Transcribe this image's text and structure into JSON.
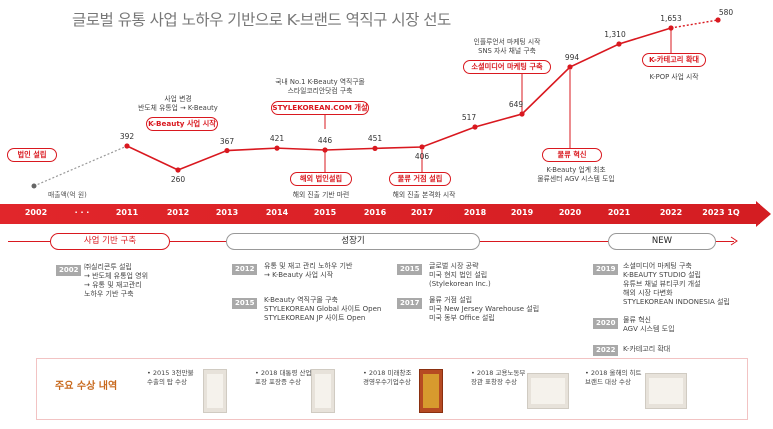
{
  "title": "글로벌 유통 사업 노하우 기반으로 K-브랜드 역직구 시장 선도",
  "sales_unit": "매출액(억 원)",
  "chart_data": {
    "type": "line",
    "unit": "억 원",
    "points": [
      {
        "year": "2011",
        "value": 392
      },
      {
        "year": "2012",
        "value": 260
      },
      {
        "year": "2013",
        "value": 367
      },
      {
        "year": "2014",
        "value": 421
      },
      {
        "year": "2015",
        "value": 446
      },
      {
        "year": "2016",
        "value": 451
      },
      {
        "year": "2017",
        "value": 406
      },
      {
        "year": "2018",
        "value": 517
      },
      {
        "year": "2019",
        "value": 649
      },
      {
        "year": "2020",
        "value": 994
      },
      {
        "year": "2021",
        "value": 1310
      },
      {
        "year": "2022",
        "value": 1653
      },
      {
        "year": "2023 1Q",
        "value": 580
      }
    ],
    "labels": [
      "392",
      "260",
      "367",
      "421",
      "446",
      "451",
      "406",
      "517",
      "649",
      "994",
      "1,310",
      "1,653",
      "580"
    ]
  },
  "events": {
    "founding": "법인 설립",
    "kbeauty_start": "K-Beauty 사업 시작",
    "kbeauty_note": "사업 변경\n반도체 유통업 → K-Beauty",
    "stylekorean_open": "STYLEKOREAN.COM 개설",
    "stylekorean_note": "국내 No.1 K-Beauty 역직구몰\n스타일코리안닷컴 구축",
    "overseas_corp": "해외 법인설립",
    "overseas_note": "해외 진출 기반 마련",
    "logistics_base": "물류 거점 설립",
    "logistics_note": "해외 진출 본격화 시작",
    "social_marketing": "소셜미디어 마케팅 구축",
    "social_note": "인플루언서 마케팅 시작\nSNS 자사 채널 구축",
    "logistics_innovation": "물류 혁신",
    "logistics_innovation_note": "K-Beauty 업계 최초\n물류센터 AGV 시스템 도입",
    "kcategory": "K-카테고리 확대",
    "kcategory_note": "K-POP 사업 시작"
  },
  "timeline": {
    "years": [
      "2002",
      "· · ·",
      "2011",
      "2012",
      "2013",
      "2014",
      "2015",
      "2016",
      "2017",
      "2018",
      "2019",
      "2020",
      "2021",
      "2022",
      "2023 1Q"
    ]
  },
  "phases": {
    "base": "사업 기반 구축",
    "growth": "성장기",
    "new": "NEW"
  },
  "history": [
    {
      "year": "2002",
      "text": "㈜실리콘투 설립\n→ 반도체 유통업 영위\n→ 유통 및 재고관리\n    노하우 기반 구축"
    },
    {
      "year": "2012",
      "text": "유통 및 재고 관리 노하우 기반\n→ K-Beauty 사업 시작"
    },
    {
      "year": "2015",
      "text": "K-Beauty 역직구몰 구축\nSTYLEKOREAN Global 사이트 Open\nSTYLEKOREAN JP 사이트 Open"
    },
    {
      "year": "2015",
      "text": "글로벌 시장 공략\n미국 현지 법인 설립\n(Stylekorean Inc.)"
    },
    {
      "year": "2017",
      "text": "물류 거점 설립\n미국 New Jersey Warehouse 설립\n미국 동부 Office 설립"
    },
    {
      "year": "2019",
      "text": "소셜미디어 마케팅 구축\nK-BEAUTY STUDIO 설립\n유튜브 채널 뷰티쿠키 개설\n해외 시장 다변화\nSTYLEKOREAN INDONESIA 설립"
    },
    {
      "year": "2020",
      "text": "물류 혁신\nAGV 시스템 도입"
    },
    {
      "year": "2022",
      "text": "K-카테고리 확대"
    }
  ],
  "awards": {
    "title": "주요 수상 내역",
    "items": [
      {
        "text": "• 2015 3천만불\n  수출의 탑 수상"
      },
      {
        "text": "• 2018 대통령 산업\n  포장 포장증 수상"
      },
      {
        "text": "• 2018 미래창조\n  경영우수기업수상"
      },
      {
        "text": "• 2018 고용노동부\n  장관 표창장 수상"
      },
      {
        "text": "• 2018 올해의 히트\n  브랜드 대상 수상"
      }
    ]
  },
  "colors": {
    "accent": "#d9181f",
    "muted": "#a9a9a9",
    "award_title": "#c8691d"
  }
}
